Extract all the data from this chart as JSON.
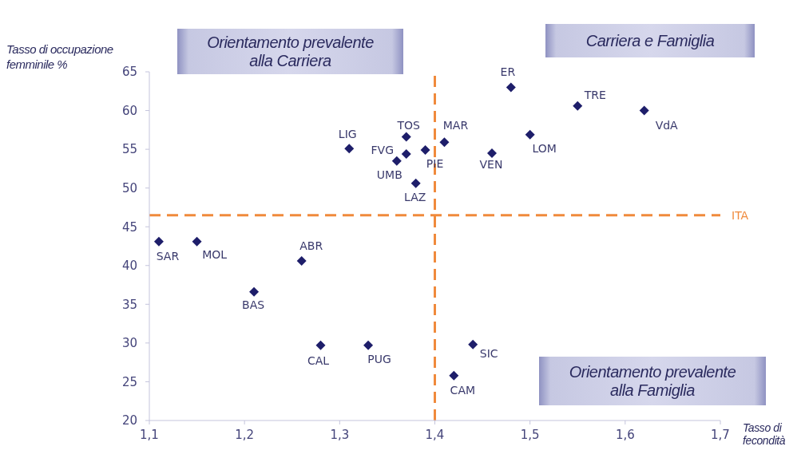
{
  "chart_data": {
    "type": "scatter",
    "xlabel": "Tasso di fecondità",
    "ylabel": "Tasso di occupazione femminile %",
    "x": [
      1.11,
      1.15,
      1.21,
      1.26,
      1.28,
      1.31,
      1.33,
      1.36,
      1.37,
      1.37,
      1.38,
      1.39,
      1.41,
      1.42,
      1.44,
      1.46,
      1.48,
      1.5,
      1.55,
      1.62
    ],
    "values": [
      43.1,
      43.1,
      36.6,
      40.6,
      29.7,
      55.1,
      29.7,
      53.5,
      56.6,
      54.4,
      50.6,
      54.9,
      55.9,
      25.8,
      29.8,
      54.5,
      63.0,
      56.9,
      60.6,
      60.0
    ],
    "color": "#1e1e6a",
    "marker": "diamond",
    "xlim": [
      1.1,
      1.7
    ],
    "xticks": [
      {
        "value": 1.1,
        "label": "1,1"
      },
      {
        "value": 1.2,
        "label": "1,2"
      },
      {
        "value": 1.3,
        "label": "1,3"
      },
      {
        "value": 1.4,
        "label": "1,4"
      },
      {
        "value": 1.5,
        "label": "1,5"
      },
      {
        "value": 1.6,
        "label": "1,6"
      },
      {
        "value": 1.7,
        "label": "1,7"
      }
    ],
    "ylim": [
      20,
      65
    ],
    "yticks": [
      20,
      25,
      30,
      35,
      40,
      45,
      50,
      55,
      60,
      65
    ],
    "ref_lines": [
      {
        "axis": "y",
        "value": 46.5,
        "label": "ITA",
        "color": "#f08a3c",
        "line_style": "dashed"
      },
      {
        "axis": "x",
        "value": 1.4,
        "color": "#f08a3c",
        "line_style": "dashed"
      }
    ],
    "annotations": [
      "Orientamento prevalente alla Carriera",
      "Carriera e Famiglia",
      "Orientamento prevalente alla Famiglia",
      {
        "text": "SAR",
        "x": 1.11,
        "y": 43.1
      },
      {
        "text": "MOL",
        "x": 1.15,
        "y": 43.1
      },
      {
        "text": "BAS",
        "x": 1.21,
        "y": 36.6
      },
      {
        "text": "ABR",
        "x": 1.26,
        "y": 40.6
      },
      {
        "text": "CAL",
        "x": 1.28,
        "y": 29.7
      },
      {
        "text": "LIG",
        "x": 1.31,
        "y": 55.1
      },
      {
        "text": "PUG",
        "x": 1.33,
        "y": 29.7
      },
      {
        "text": "UMB",
        "x": 1.36,
        "y": 53.5
      },
      {
        "text": "TOS",
        "x": 1.37,
        "y": 56.6
      },
      {
        "text": "FVG",
        "x": 1.37,
        "y": 54.4
      },
      {
        "text": "LAZ",
        "x": 1.38,
        "y": 50.6
      },
      {
        "text": "PIE",
        "x": 1.39,
        "y": 54.9
      },
      {
        "text": "MAR",
        "x": 1.41,
        "y": 55.9
      },
      {
        "text": "CAM",
        "x": 1.42,
        "y": 25.8
      },
      {
        "text": "SIC",
        "x": 1.44,
        "y": 29.8
      },
      {
        "text": "VEN",
        "x": 1.46,
        "y": 54.5
      },
      {
        "text": "ER",
        "x": 1.48,
        "y": 63.0
      },
      {
        "text": "LOM",
        "x": 1.5,
        "y": 56.9
      },
      {
        "text": "TRE",
        "x": 1.55,
        "y": 60.6
      },
      {
        "text": "VdA",
        "x": 1.62,
        "y": 60.0
      }
    ]
  }
}
